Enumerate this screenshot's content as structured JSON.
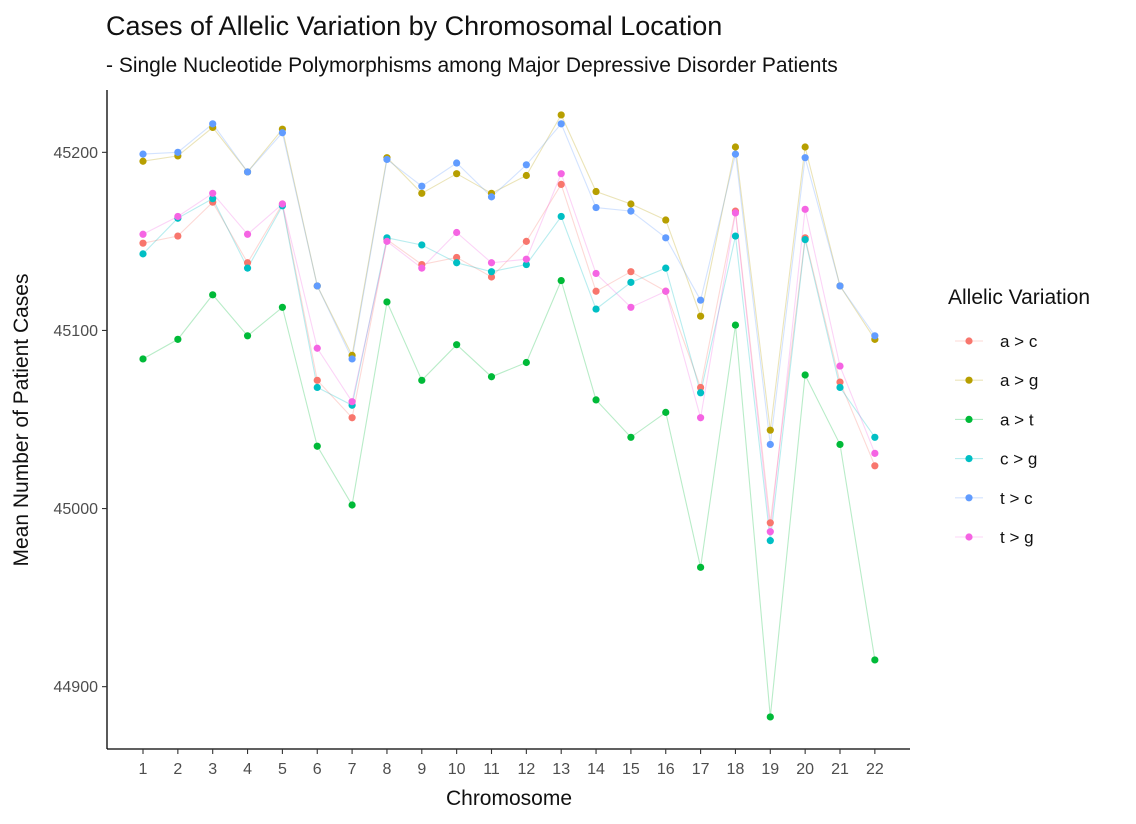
{
  "chart_data": {
    "type": "line",
    "title": "Cases of Allelic Variation by Chromosomal Location",
    "subtitle": "- Single Nucleotide Polymorphisms among Major Depressive Disorder Patients",
    "xlabel": "Chromosome",
    "ylabel": "Mean Number of Patient Cases",
    "legend_title": "Allelic Variation",
    "legend_position": "right",
    "grid": false,
    "ylim": [
      44865,
      45235
    ],
    "yticks": [
      44900,
      45000,
      45100,
      45200
    ],
    "categories": [
      "1",
      "2",
      "3",
      "4",
      "5",
      "6",
      "7",
      "8",
      "9",
      "10",
      "11",
      "12",
      "13",
      "14",
      "15",
      "16",
      "17",
      "18",
      "19",
      "20",
      "21",
      "22"
    ],
    "series": [
      {
        "name": "a > c",
        "color": "#F8766D",
        "values": [
          45149,
          45153,
          45172,
          45138,
          45171,
          45072,
          45051,
          45151,
          45137,
          45141,
          45130,
          45150,
          45182,
          45122,
          45133,
          45122,
          45068,
          45167,
          44992,
          45152,
          45071,
          45024
        ]
      },
      {
        "name": "a > g",
        "color": "#B79F00",
        "values": [
          45195,
          45198,
          45214,
          45189,
          45213,
          45125,
          45086,
          45197,
          45177,
          45188,
          45177,
          45187,
          45221,
          45178,
          45171,
          45162,
          45108,
          45203,
          45044,
          45203,
          45125,
          45095
        ]
      },
      {
        "name": "a > t",
        "color": "#00BA38",
        "values": [
          45084,
          45095,
          45120,
          45097,
          45113,
          45035,
          45002,
          45116,
          45072,
          45092,
          45074,
          45082,
          45128,
          45061,
          45040,
          45054,
          44967,
          45103,
          44883,
          45075,
          45036,
          44915
        ]
      },
      {
        "name": "c > g",
        "color": "#00BFC4",
        "values": [
          45143,
          45163,
          45174,
          45135,
          45170,
          45068,
          45058,
          45152,
          45148,
          45138,
          45133,
          45137,
          45164,
          45112,
          45127,
          45135,
          45065,
          45153,
          44982,
          45151,
          45068,
          45040
        ]
      },
      {
        "name": "t > c",
        "color": "#619CFF",
        "values": [
          45199,
          45200,
          45216,
          45189,
          45211,
          45125,
          45084,
          45196,
          45181,
          45194,
          45175,
          45193,
          45216,
          45169,
          45167,
          45152,
          45117,
          45199,
          45036,
          45197,
          45125,
          45097
        ]
      },
      {
        "name": "t > g",
        "color": "#F564E3",
        "values": [
          45154,
          45164,
          45177,
          45154,
          45171,
          45090,
          45060,
          45150,
          45135,
          45155,
          45138,
          45140,
          45188,
          45132,
          45113,
          45122,
          45051,
          45166,
          44987,
          45168,
          45080,
          45031
        ]
      }
    ]
  }
}
